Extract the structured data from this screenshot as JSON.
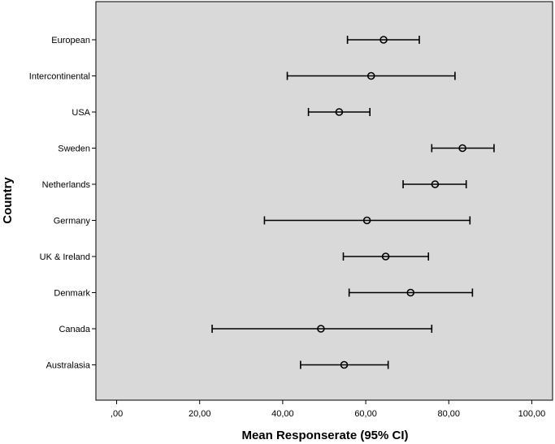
{
  "chart_data": {
    "type": "scatter",
    "xlabel": "Mean Responserate (95% CI)",
    "ylabel": "Country",
    "xlim": [
      -5,
      105
    ],
    "xticks": [
      0,
      20,
      40,
      60,
      80,
      100
    ],
    "xtick_labels": [
      ",00",
      "20,00",
      "40,00",
      "60,00",
      "80,00",
      "100,00"
    ],
    "categories": [
      "European",
      "Intercontinental",
      "USA",
      "Sweden",
      "Netherlands",
      "Germany",
      "UK & Ireland",
      "Denmark",
      "Canada",
      "Australasia"
    ],
    "means": [
      64.3,
      61.3,
      53.6,
      83.3,
      76.7,
      60.3,
      64.8,
      70.8,
      49.2,
      54.8
    ],
    "ci_low": [
      55.6,
      41.1,
      46.2,
      75.9,
      69.0,
      35.6,
      54.6,
      56.0,
      23.0,
      44.3
    ],
    "ci_high": [
      72.9,
      81.5,
      61.0,
      90.9,
      84.2,
      85.1,
      75.1,
      85.7,
      75.9,
      65.4
    ],
    "grid": false,
    "colors": {
      "plot_background": "#d9d9d9",
      "marks": "#000000"
    }
  }
}
